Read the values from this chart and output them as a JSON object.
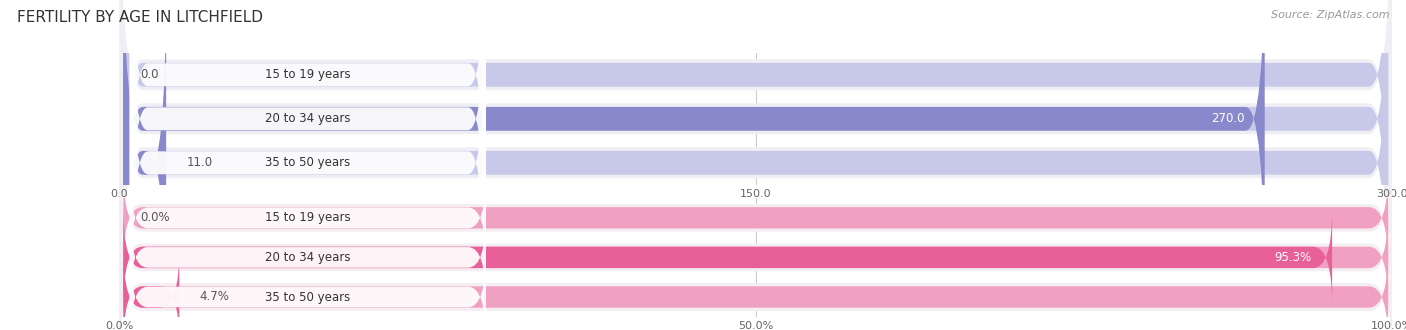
{
  "title": "FERTILITY BY AGE IN LITCHFIELD",
  "source": "Source: ZipAtlas.com",
  "top_chart": {
    "categories": [
      "15 to 19 years",
      "20 to 34 years",
      "35 to 50 years"
    ],
    "values": [
      0.0,
      270.0,
      11.0
    ],
    "max_value": 300.0,
    "tick_values": [
      0.0,
      150.0,
      300.0
    ],
    "tick_labels": [
      "0.0",
      "150.0",
      "300.0"
    ],
    "bar_color": "#8888cc",
    "bar_bg_color": "#c8c8e8",
    "row_bg_color": "#eeeef4",
    "label_color_inside": "#ffffff",
    "label_color_outside": "#555555"
  },
  "bottom_chart": {
    "categories": [
      "15 to 19 years",
      "20 to 34 years",
      "35 to 50 years"
    ],
    "values": [
      0.0,
      95.3,
      4.7
    ],
    "max_value": 100.0,
    "tick_values": [
      0.0,
      50.0,
      100.0
    ],
    "tick_labels": [
      "0.0%",
      "50.0%",
      "100.0%"
    ],
    "bar_color": "#e8609a",
    "bar_bg_color": "#f0a0c0",
    "row_bg_color": "#f4eef2",
    "label_color_inside": "#ffffff",
    "label_color_outside": "#555555"
  },
  "category_label_color": "#444444",
  "background_color": "#ffffff",
  "fig_width": 14.06,
  "fig_height": 3.3
}
